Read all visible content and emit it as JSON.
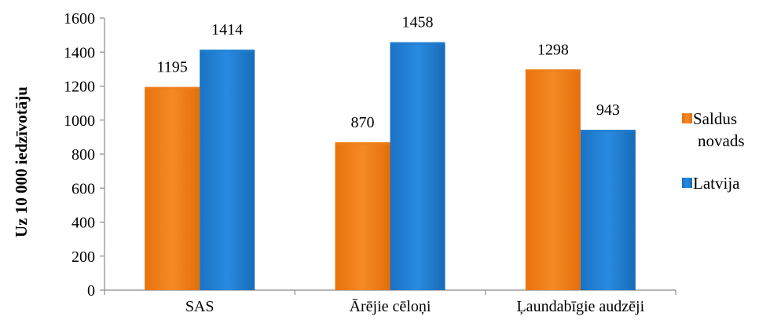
{
  "chart_data": {
    "type": "bar",
    "title": "",
    "ylabel": "Uz 10 000 iedzīvotāju",
    "xlabel": "",
    "categories": [
      "SAS",
      "Ārējie cēloņi",
      "Ļaundabīgie audzēji"
    ],
    "series": [
      {
        "name": "Saldus novads",
        "name_lines": [
          "Saldus",
          "novads"
        ],
        "color": "#f07f17",
        "values": [
          1195,
          870,
          1298
        ]
      },
      {
        "name": "Latvija",
        "name_lines": [
          "Latvija"
        ],
        "color": "#1f7fd0",
        "values": [
          1414,
          1458,
          943
        ]
      }
    ],
    "ylim": [
      0,
      1600
    ],
    "yticks": [
      0,
      200,
      400,
      600,
      800,
      1000,
      1200,
      1400,
      1600
    ],
    "grid": false,
    "legend": "right"
  }
}
